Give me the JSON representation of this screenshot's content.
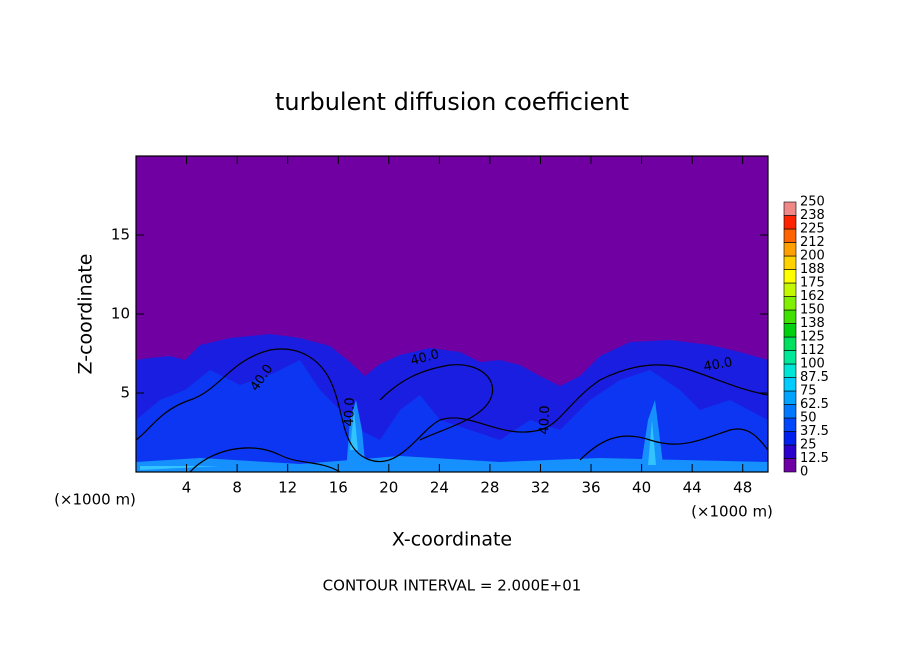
{
  "chart_data": {
    "type": "contour",
    "title": "turbulent diffusion coefficient",
    "x_label": "X-coordinate",
    "y_label": "Z-coordinate",
    "x_unit": "(×1000 m)",
    "y_unit": "(×1000 m)",
    "footer": "CONTOUR INTERVAL = 2.000E+01",
    "xlim": [
      0,
      50
    ],
    "ylim": [
      0,
      20
    ],
    "xticks": [
      4,
      8,
      12,
      16,
      20,
      24,
      28,
      32,
      36,
      40,
      44,
      48
    ],
    "yticks": [
      5,
      10,
      15
    ],
    "contour_labels": [
      "40.0",
      "40.0",
      "40.0",
      "40.0",
      "40.0"
    ],
    "colorbar": {
      "levels": [
        0,
        12.5,
        25,
        37.5,
        50,
        62.5,
        75,
        87.5,
        100,
        112,
        125,
        138,
        150,
        162,
        175,
        188,
        200,
        212,
        225,
        238,
        250
      ],
      "colors": [
        "#6e00a4",
        "#2c00cc",
        "#0020f0",
        "#0048ff",
        "#0078ff",
        "#00a4ff",
        "#00ccff",
        "#00e6d6",
        "#00e898",
        "#00e060",
        "#00d010",
        "#40e000",
        "#80f000",
        "#c4f800",
        "#ffff00",
        "#ffd200",
        "#ffa000",
        "#ff6400",
        "#ff2400",
        "#f08888"
      ]
    }
  }
}
